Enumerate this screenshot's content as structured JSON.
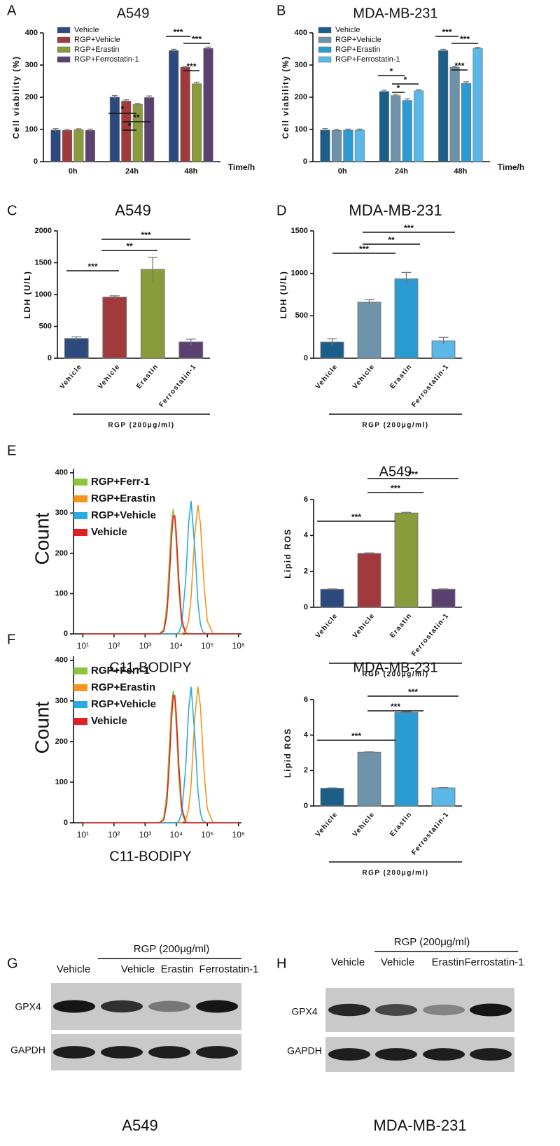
{
  "chart_data": [
    {
      "panel": "A",
      "type": "bar",
      "title": "A549",
      "ylabel": "Cell viability (%)",
      "xlabel": "Time/h",
      "categories": [
        "0h",
        "24h",
        "48h"
      ],
      "series": [
        {
          "name": "Vehicle",
          "color": "#2d4a7e",
          "values": [
            98,
            200,
            345
          ],
          "errors": [
            5,
            5,
            4
          ]
        },
        {
          "name": "RGP+Vehicle",
          "color": "#a13a3c",
          "values": [
            97,
            188,
            293
          ],
          "errors": [
            3,
            4,
            3
          ]
        },
        {
          "name": "RGP+Erastin",
          "color": "#8a9b3c",
          "values": [
            99,
            178,
            242
          ],
          "errors": [
            3,
            3,
            5
          ]
        },
        {
          "name": "RGP+Ferrostatin-1",
          "color": "#5c4070",
          "values": [
            97,
            199,
            352
          ],
          "errors": [
            4,
            5,
            4
          ]
        }
      ],
      "ylim": [
        0,
        400
      ],
      "yticks": [
        0,
        100,
        200,
        300,
        400
      ],
      "legend": "upper left",
      "annotations": [
        "*",
        "**",
        "*",
        "***",
        "***",
        "***"
      ]
    },
    {
      "panel": "B",
      "type": "bar",
      "title": "MDA-MB-231",
      "ylabel": "Cell viability (%)",
      "xlabel": "Time/h",
      "categories": [
        "0h",
        "24h",
        "48h"
      ],
      "series": [
        {
          "name": "Vehicle",
          "color": "#1b5e88",
          "values": [
            98,
            218,
            345
          ],
          "errors": [
            5,
            4,
            4
          ]
        },
        {
          "name": "RGP+Vehicle",
          "color": "#6d93ab",
          "values": [
            97,
            205,
            293
          ],
          "errors": [
            3,
            4,
            3
          ]
        },
        {
          "name": "RGP+Erastin",
          "color": "#2a9bd3",
          "values": [
            98,
            190,
            243
          ],
          "errors": [
            3,
            5,
            5
          ]
        },
        {
          "name": "RGP+Ferrostatin-1",
          "color": "#5ab8e8",
          "values": [
            98,
            220,
            352
          ],
          "errors": [
            3,
            3,
            3
          ]
        }
      ],
      "ylim": [
        0,
        400
      ],
      "yticks": [
        0,
        100,
        200,
        300,
        400
      ],
      "legend": "upper left",
      "annotations": [
        "*",
        "*",
        "*",
        "***",
        "***",
        "***"
      ]
    },
    {
      "panel": "C",
      "type": "bar",
      "title": "A549",
      "ylabel": "LDH (U/L)",
      "group_label": "RGP (200μg/ml)",
      "categories": [
        "Vehicle",
        "Vehicle",
        "Erastin",
        "Ferrostatin-1"
      ],
      "values": [
        310,
        960,
        1395,
        255
      ],
      "errors": [
        25,
        20,
        190,
        45
      ],
      "colors": [
        "#2d4a7e",
        "#a13a3c",
        "#8a9b3c",
        "#5c4070"
      ],
      "ylim": [
        0,
        2000
      ],
      "yticks": [
        0,
        500,
        1000,
        1500,
        2000
      ],
      "annotations": [
        "***",
        "**",
        "***"
      ]
    },
    {
      "panel": "D",
      "type": "bar",
      "title": "MDA-MB-231",
      "ylabel": "LDH (U/L)",
      "group_label": "RGP (200μg/ml)",
      "categories": [
        "Vehicle",
        "Vehicle",
        "Erastin",
        "Ferrostatin-1"
      ],
      "values": [
        190,
        660,
        935,
        205
      ],
      "errors": [
        40,
        30,
        75,
        40
      ],
      "colors": [
        "#1b5e88",
        "#6d93ab",
        "#2a9bd3",
        "#5ab8e8"
      ],
      "ylim": [
        0,
        1500
      ],
      "yticks": [
        0,
        500,
        1000,
        1500
      ],
      "annotations": [
        "***",
        "**",
        "***"
      ]
    },
    {
      "panel": "E",
      "type": "line",
      "xlabel": "C11-BODIPY",
      "ylabel": "Count",
      "xscale": "log",
      "x": [
        10,
        100,
        1000,
        2000,
        3000,
        4000,
        5000,
        6000,
        7000,
        8000,
        9000,
        10000,
        12000,
        15000,
        20000,
        25000,
        30000,
        40000,
        50000,
        60000,
        70000,
        80000,
        100000,
        150000,
        200000,
        300000,
        1000000
      ],
      "series": [
        {
          "name": "RGP+Ferr-1",
          "color": "#8cc63f",
          "values": [
            0,
            0,
            0,
            0,
            1,
            13,
            73,
            180,
            276,
            310,
            283,
            224,
            106,
            23,
            1,
            0,
            0,
            0,
            0,
            0,
            0,
            0,
            0,
            0,
            0,
            0,
            0
          ]
        },
        {
          "name": "RGP+Erastin",
          "color": "#f7941d",
          "values": [
            0,
            0,
            0,
            0,
            0,
            0,
            0,
            0,
            0,
            0,
            0,
            0,
            0,
            0,
            6,
            32,
            91,
            252,
            320,
            273,
            186,
            111,
            32,
            1,
            0,
            0,
            0
          ]
        },
        {
          "name": "RGP+Vehicle",
          "color": "#29abe2",
          "values": [
            0,
            0,
            0,
            0,
            0,
            0,
            0,
            0,
            0,
            0,
            0,
            0,
            3,
            23,
            132,
            274,
            330,
            208,
            77,
            23,
            6,
            2,
            0,
            0,
            0,
            0,
            0
          ]
        },
        {
          "name": "Vehicle",
          "color": "#e31e24",
          "values": [
            0,
            0,
            0,
            0,
            0,
            7,
            48,
            136,
            235,
            293,
            293,
            252,
            137,
            36,
            2,
            0,
            0,
            0,
            0,
            0,
            0,
            0,
            0,
            0,
            0,
            0,
            0
          ]
        }
      ],
      "xlim": [
        5,
        1250000
      ],
      "xticks": [
        {
          "value": 10,
          "label": "10¹"
        },
        {
          "value": 100,
          "label": "10²"
        },
        {
          "value": 1000,
          "label": "10³"
        },
        {
          "value": 10000,
          "label": "10⁴"
        },
        {
          "value": 100000,
          "label": "10⁵"
        },
        {
          "value": 1000000,
          "label": "10⁶"
        }
      ],
      "ylim": [
        0,
        410
      ],
      "yticks": [
        0,
        100,
        200,
        300,
        400
      ],
      "legend": "upper left"
    },
    {
      "type": "bar",
      "title": "A549",
      "ylabel": "Lipid ROS",
      "group_label": "RGP (200μg/ml)",
      "categories": [
        "Vehicle",
        "Vehicle",
        "Erastin",
        "Ferrostatin-1"
      ],
      "values": [
        1.0,
        3.0,
        5.25,
        1.0
      ],
      "errors": [
        0.02,
        0.03,
        0.04,
        0.02
      ],
      "colors": [
        "#2d4a7e",
        "#a13a3c",
        "#8a9b3c",
        "#5c4070"
      ],
      "ylim": [
        0,
        6
      ],
      "yticks": [
        0,
        2,
        4,
        6
      ],
      "annotations": [
        "***",
        "***",
        "***"
      ]
    },
    {
      "panel": "F",
      "type": "line",
      "xlabel": "C11-BODIPY",
      "ylabel": "Count",
      "xscale": "log",
      "x": [
        10,
        100,
        1000,
        2000,
        3000,
        4000,
        5000,
        6000,
        7000,
        8000,
        9000,
        10000,
        12000,
        15000,
        20000,
        25000,
        30000,
        40000,
        50000,
        60000,
        70000,
        80000,
        100000,
        150000,
        200000,
        300000,
        1000000
      ],
      "series": [
        {
          "name": "RGP+Ferr-1",
          "color": "#8cc63f",
          "values": [
            0,
            0,
            0,
            0,
            1,
            14,
            77,
            189,
            290,
            325,
            297,
            235,
            111,
            24,
            1,
            0,
            0,
            0,
            0,
            0,
            0,
            0,
            0,
            0,
            0,
            0,
            0
          ]
        },
        {
          "name": "RGP+Erastin",
          "color": "#f7941d",
          "values": [
            0,
            0,
            0,
            0,
            0,
            0,
            0,
            0,
            0,
            0,
            0,
            0,
            0,
            0,
            6,
            34,
            95,
            264,
            335,
            286,
            195,
            116,
            34,
            1,
            0,
            0,
            0
          ]
        },
        {
          "name": "RGP+Vehicle",
          "color": "#29abe2",
          "values": [
            0,
            0,
            0,
            0,
            0,
            0,
            0,
            0,
            0,
            0,
            0,
            0,
            3,
            23,
            134,
            278,
            335,
            211,
            78,
            23,
            6,
            2,
            0,
            0,
            0,
            0,
            0
          ]
        },
        {
          "name": "Vehicle",
          "color": "#e31e24",
          "values": [
            0,
            0,
            0,
            0,
            0,
            7,
            51,
            145,
            251,
            313,
            313,
            269,
            146,
            38,
            2,
            0,
            0,
            0,
            0,
            0,
            0,
            0,
            0,
            0,
            0,
            0,
            0
          ]
        }
      ],
      "xlim": [
        5,
        1250000
      ],
      "xticks": [
        {
          "value": 10,
          "label": "10¹"
        },
        {
          "value": 100,
          "label": "10²"
        },
        {
          "value": 1000,
          "label": "10³"
        },
        {
          "value": 10000,
          "label": "10⁴"
        },
        {
          "value": 100000,
          "label": "10⁵"
        },
        {
          "value": 1000000,
          "label": "10⁶"
        }
      ],
      "ylim": [
        0,
        410
      ],
      "yticks": [
        0,
        100,
        200,
        300,
        400
      ],
      "legend": "upper left"
    },
    {
      "type": "bar",
      "title": "MDA-MB-231",
      "ylabel": "Lipid ROS",
      "group_label": "RGP (200μg/ml)",
      "categories": [
        "Vehicle",
        "Vehicle",
        "Erastin",
        "Ferrostatin-1"
      ],
      "values": [
        1.0,
        3.03,
        5.28,
        1.02
      ],
      "errors": [
        0.02,
        0.03,
        0.04,
        0.02
      ],
      "colors": [
        "#1b5e88",
        "#6d93ab",
        "#2a9bd3",
        "#5ab8e8"
      ],
      "ylim": [
        0,
        6
      ],
      "yticks": [
        0,
        2,
        4,
        6
      ],
      "annotations": [
        "***",
        "***",
        "***"
      ]
    }
  ],
  "blots": [
    {
      "panel": "G",
      "group_label": "RGP (200μg/ml)",
      "lanes": [
        "Vehicle",
        "Vehicle",
        "Erastin",
        "Ferrostatin-1"
      ],
      "rows": [
        "GPX4",
        "GAPDH"
      ],
      "caption": "A549"
    },
    {
      "panel": "H",
      "group_label": "RGP (200μg/ml)",
      "lanes": [
        "Vehicle",
        "Vehicle",
        "Erastin",
        "Ferrostatin-1"
      ],
      "rows": [
        "GPX4",
        "GAPDH"
      ],
      "caption": "MDA-MB-231"
    }
  ]
}
